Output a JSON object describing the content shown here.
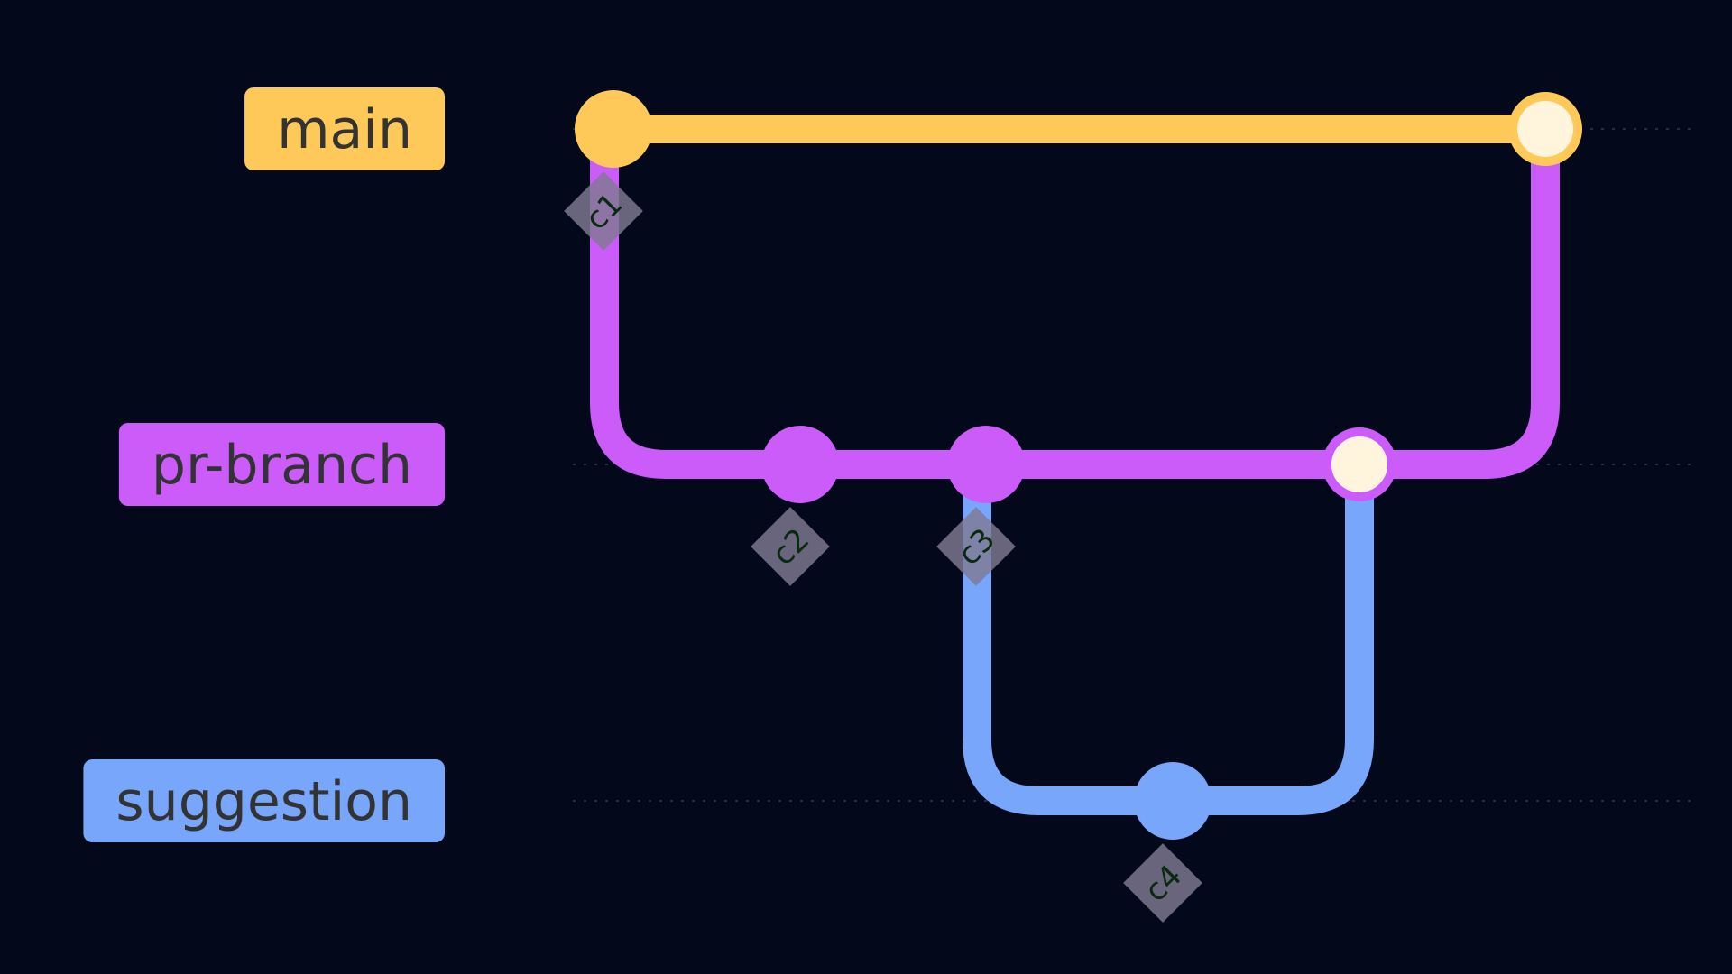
{
  "diagram": {
    "type": "git-graph",
    "background": "#03081a",
    "branches": [
      {
        "id": "main",
        "label": "main",
        "color": "#ffc95a"
      },
      {
        "id": "pr-branch",
        "label": "pr-branch",
        "color": "#cc5cfa"
      },
      {
        "id": "suggestion",
        "label": "suggestion",
        "color": "#77a6fb"
      }
    ],
    "commits": [
      {
        "id": "c1",
        "label": "c1",
        "branch": "main",
        "kind": "normal"
      },
      {
        "id": "c2",
        "label": "c2",
        "branch": "pr-branch",
        "kind": "normal"
      },
      {
        "id": "c3",
        "label": "c3",
        "branch": "pr-branch",
        "kind": "normal"
      },
      {
        "id": "c4",
        "label": "c4",
        "branch": "suggestion",
        "kind": "normal"
      },
      {
        "id": "merge-suggestion",
        "label": "",
        "branch": "pr-branch",
        "kind": "merge",
        "from": "suggestion"
      },
      {
        "id": "merge-pr",
        "label": "",
        "branch": "main",
        "kind": "merge",
        "from": "pr-branch"
      }
    ],
    "edges": [
      {
        "from": "c1",
        "to": "merge-pr",
        "branch": "main"
      },
      {
        "from": "c1",
        "to": "c2",
        "branch": "pr-branch"
      },
      {
        "from": "c2",
        "to": "c3",
        "branch": "pr-branch"
      },
      {
        "from": "c3",
        "to": "merge-suggestion",
        "branch": "pr-branch"
      },
      {
        "from": "c3",
        "to": "c4",
        "branch": "suggestion"
      },
      {
        "from": "c4",
        "to": "merge-suggestion",
        "branch": "suggestion"
      },
      {
        "from": "merge-suggestion",
        "to": "merge-pr",
        "branch": "pr-branch"
      }
    ],
    "merge_fill": "#fff4dc",
    "commit_label_tag_color": "#7f7a92"
  }
}
